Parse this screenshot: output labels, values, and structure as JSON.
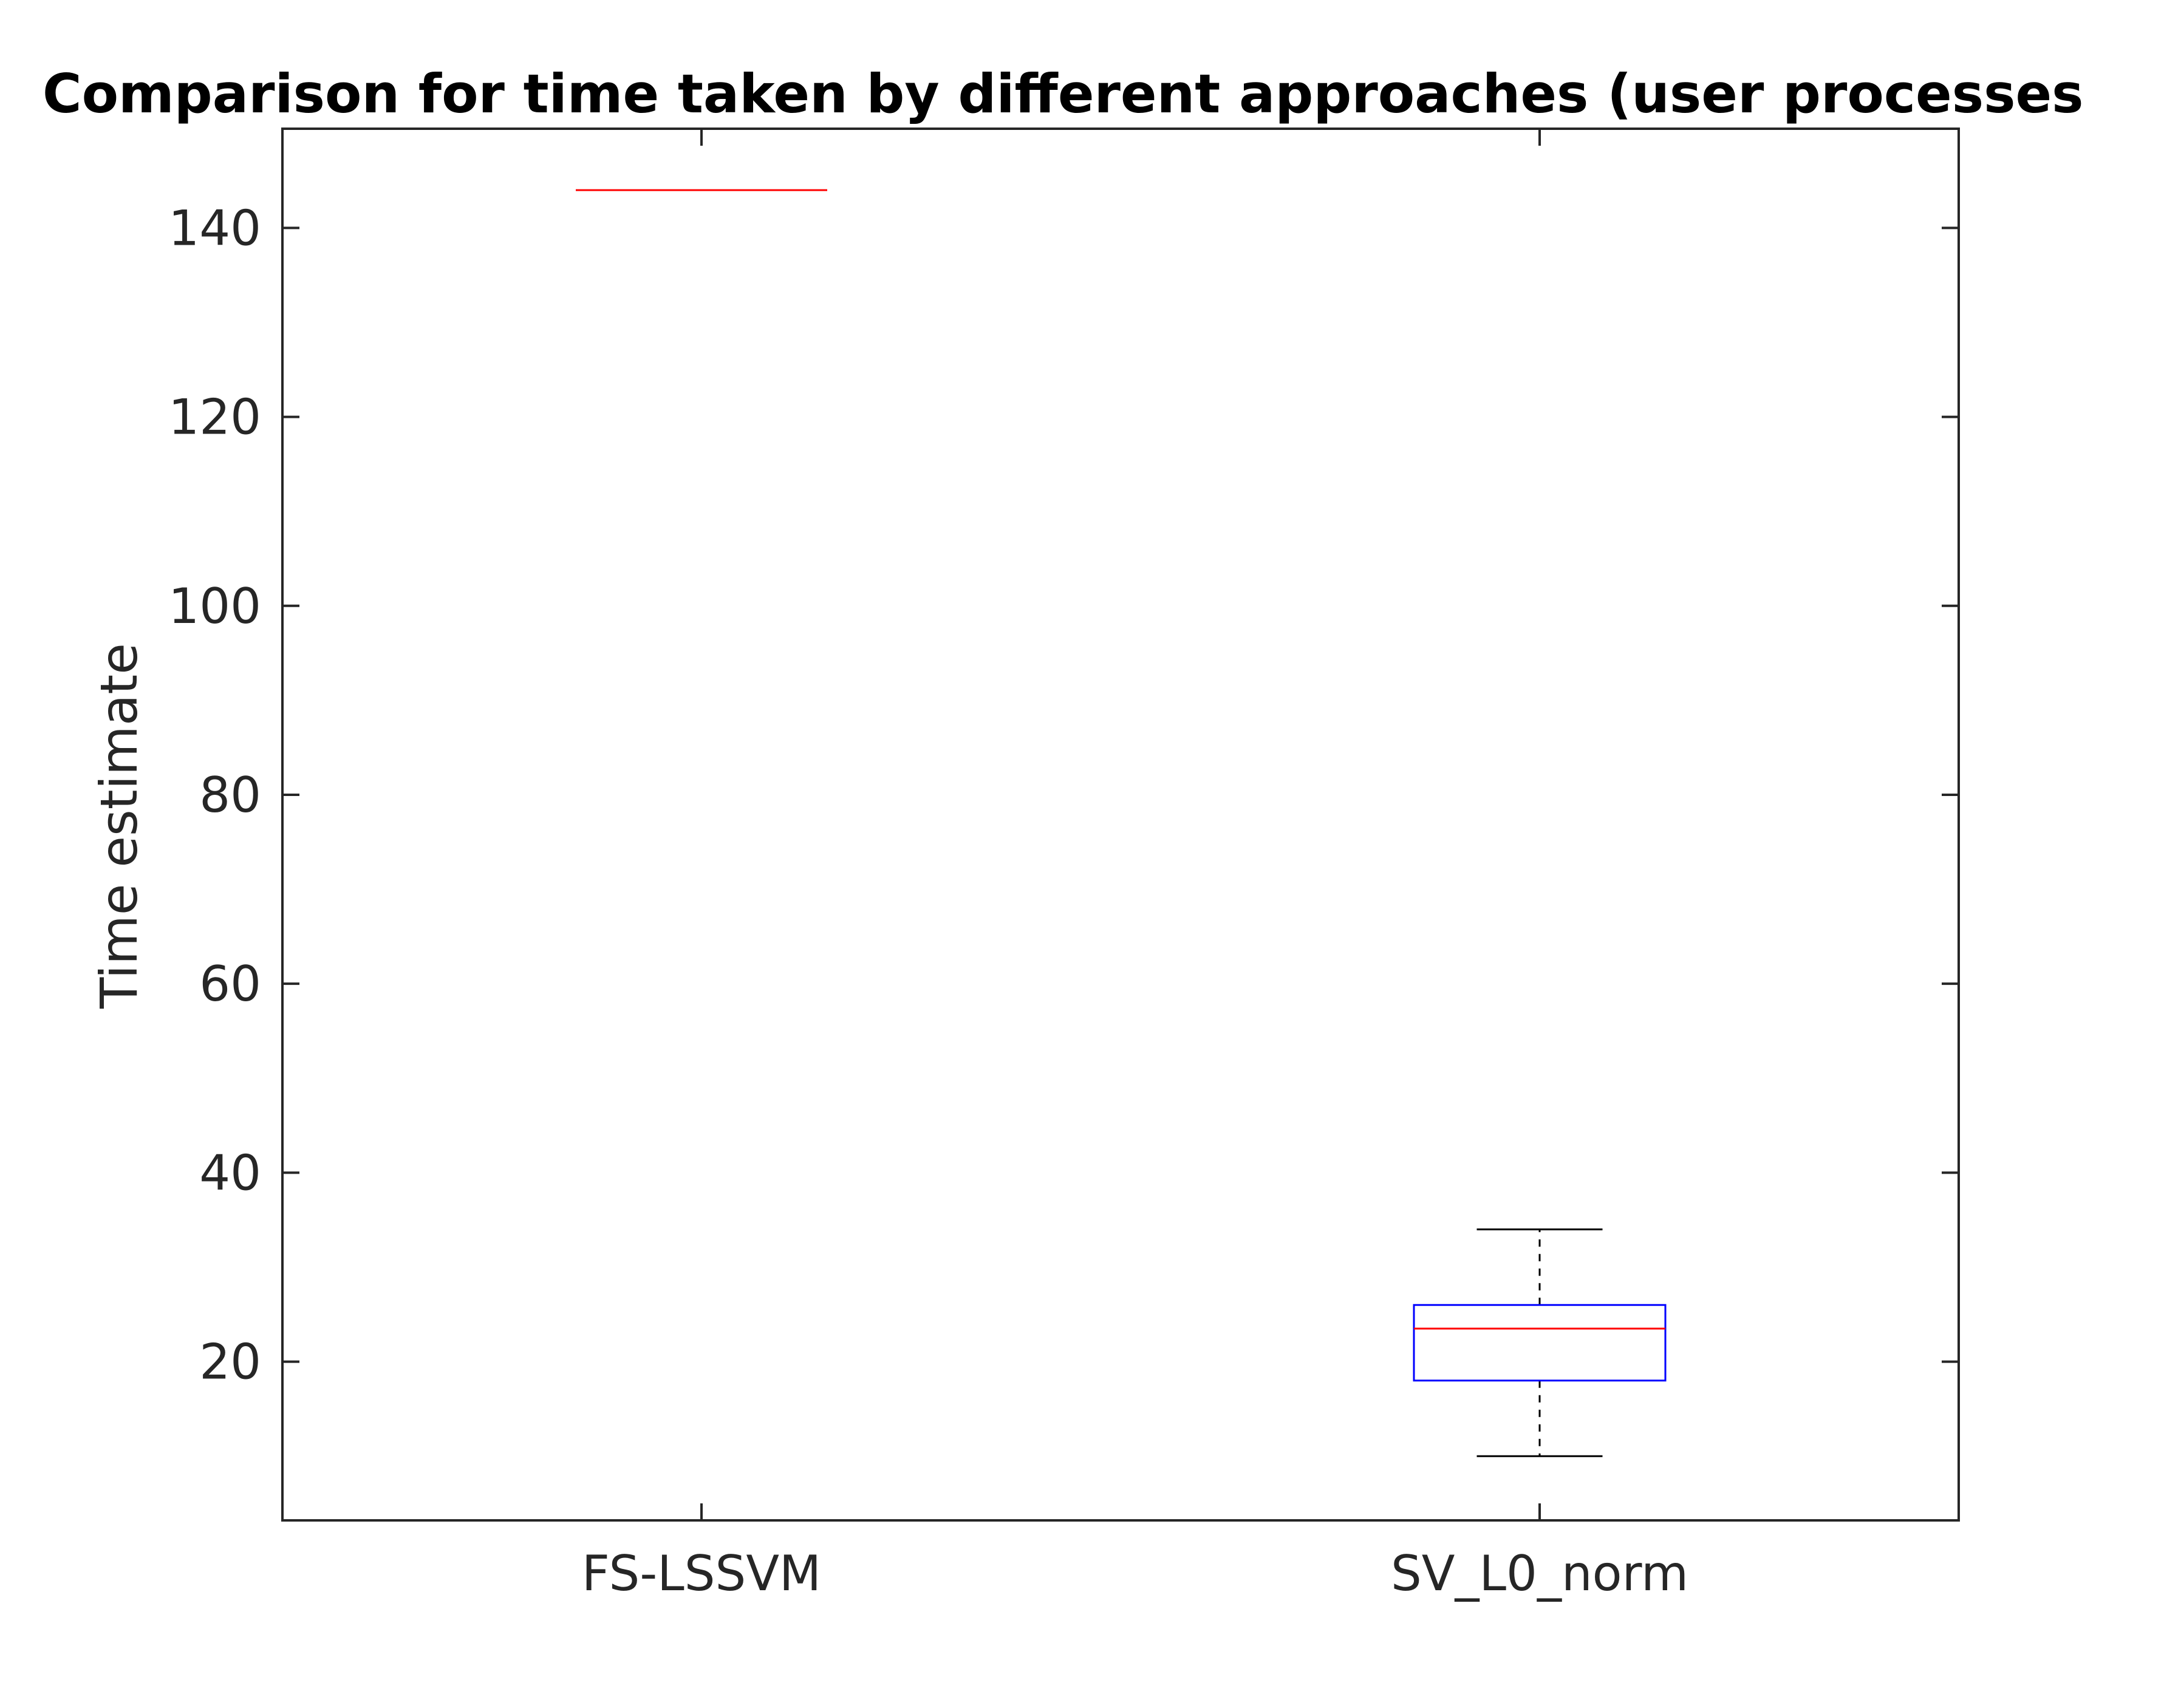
{
  "chart_data": {
    "type": "box",
    "title": "Comparison for time taken by different approaches (user processes",
    "xlabel": "",
    "ylabel": "Time estimate",
    "ylim": [
      3.2,
      150.5
    ],
    "yticks": [
      20,
      40,
      60,
      80,
      100,
      120,
      140
    ],
    "categories": [
      "FS-LSSVM",
      "SV_L0_norm"
    ],
    "boxes": [
      {
        "category": "FS-LSSVM",
        "min": 144,
        "q1": 144,
        "median": 144,
        "q3": 144,
        "max": 144
      },
      {
        "category": "SV_L0_norm",
        "min": 10,
        "q1": 18,
        "median": 23.5,
        "q3": 26,
        "max": 34
      }
    ],
    "colors": {
      "box": "#0000ff",
      "median": "#ff0000",
      "whisker": "#000000",
      "axis": "#262626"
    },
    "grid": false
  }
}
